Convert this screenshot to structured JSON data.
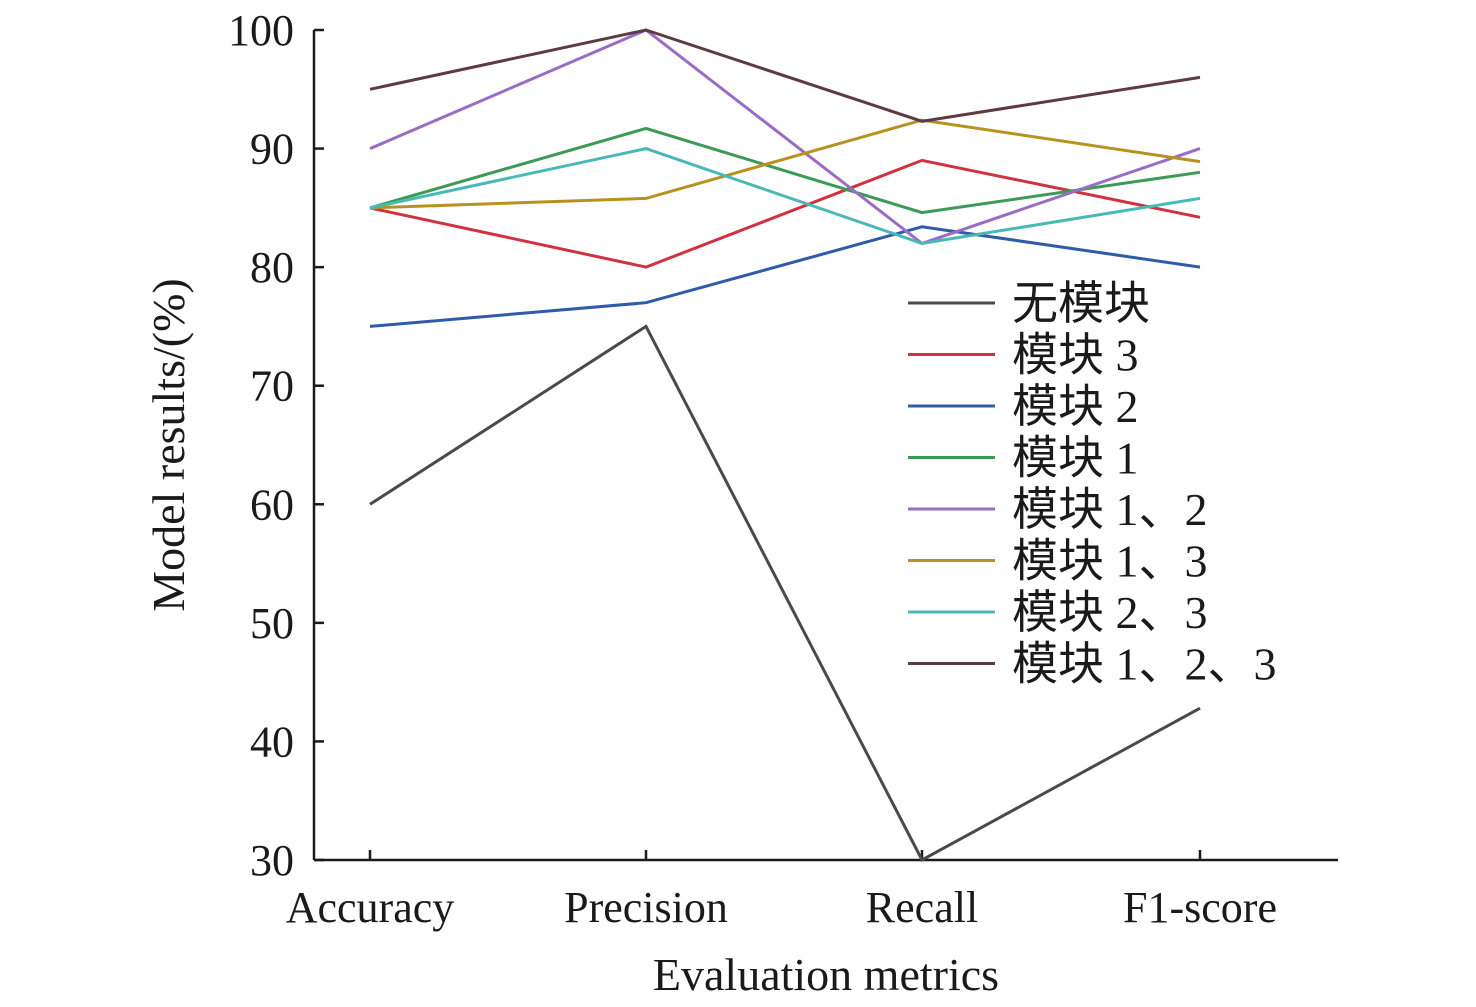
{
  "chart_data": {
    "type": "line",
    "title": "",
    "xlabel": "Evaluation metrics",
    "ylabel": "Model results/(%)",
    "ylim": [
      30,
      100
    ],
    "yticks": [
      "30",
      "40",
      "50",
      "60",
      "70",
      "80",
      "90",
      "100"
    ],
    "categories": [
      "Accuracy",
      "Precision",
      "Recall",
      "F1-score"
    ],
    "grid": false,
    "legend_position": "right",
    "series": [
      {
        "name": "无模块",
        "color": "#4a4a4a",
        "values": [
          60,
          75,
          30,
          42.8
        ]
      },
      {
        "name": "模块 3",
        "color": "#d0323f",
        "values": [
          85,
          80,
          89,
          84.2
        ]
      },
      {
        "name": "模块 2",
        "color": "#2f5ba8",
        "values": [
          75,
          77,
          83.4,
          80
        ]
      },
      {
        "name": "模块 1",
        "color": "#3a9a56",
        "values": [
          85,
          91.7,
          84.6,
          88
        ]
      },
      {
        "name": "模块 1、2",
        "color": "#9a6cc6",
        "values": [
          90,
          100,
          82,
          90
        ]
      },
      {
        "name": "模块 1、3",
        "color": "#b8921f",
        "values": [
          85,
          85.8,
          92.4,
          88.9
        ]
      },
      {
        "name": "模块 2、3",
        "color": "#4bb8b8",
        "values": [
          85,
          90,
          82,
          85.8
        ]
      },
      {
        "name": "模块 1、2、3",
        "color": "#5e3a42",
        "values": [
          95,
          100,
          92.3,
          96
        ]
      }
    ]
  }
}
